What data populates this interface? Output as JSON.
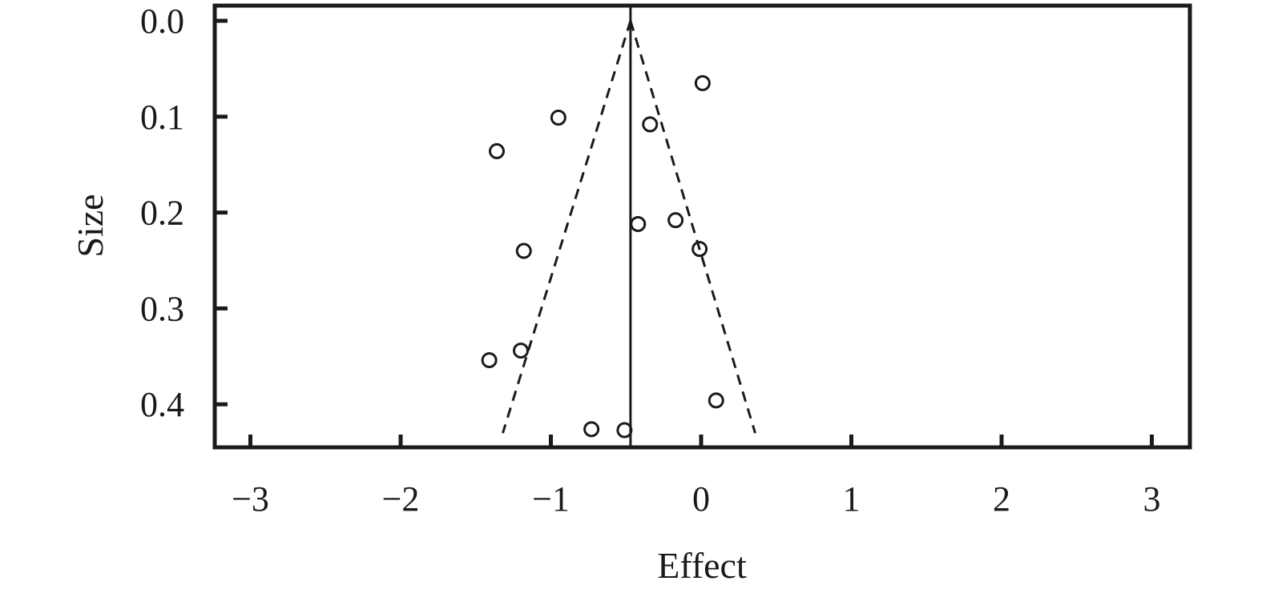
{
  "chart_data": {
    "type": "scatter",
    "title": "",
    "xlabel": "Effect",
    "ylabel": "Size",
    "xlim": [
      -3.25,
      3.25
    ],
    "ylim": [
      0.0,
      0.45
    ],
    "y_axis_inverted": true,
    "x_ticks": [
      -3,
      -2,
      -1,
      0,
      1,
      2,
      3
    ],
    "x_tick_labels": [
      "−3",
      "−2",
      "−1",
      "0",
      "1",
      "2",
      "3"
    ],
    "y_ticks": [
      0.0,
      0.1,
      0.2,
      0.3,
      0.4
    ],
    "y_tick_labels": [
      "0.0",
      "0.1",
      "0.2",
      "0.3",
      "0.4"
    ],
    "grid": false,
    "marker": "open-circle",
    "pooled_effect": -0.47,
    "funnel_lines": [
      {
        "style": "dashed",
        "points": [
          {
            "x": -0.47,
            "y": 0.0
          },
          {
            "x": -1.32,
            "y": 0.43
          }
        ]
      },
      {
        "style": "dashed",
        "points": [
          {
            "x": -0.47,
            "y": 0.0
          },
          {
            "x": 0.36,
            "y": 0.43
          }
        ]
      }
    ],
    "points": [
      {
        "x": 0.01,
        "y": 0.065
      },
      {
        "x": -0.95,
        "y": 0.101
      },
      {
        "x": -0.34,
        "y": 0.108
      },
      {
        "x": -1.36,
        "y": 0.136
      },
      {
        "x": -0.42,
        "y": 0.212
      },
      {
        "x": -0.17,
        "y": 0.208
      },
      {
        "x": -1.18,
        "y": 0.24
      },
      {
        "x": -0.01,
        "y": 0.238
      },
      {
        "x": -1.2,
        "y": 0.344
      },
      {
        "x": -1.41,
        "y": 0.354
      },
      {
        "x": 0.1,
        "y": 0.396
      },
      {
        "x": -0.73,
        "y": 0.426
      },
      {
        "x": -0.51,
        "y": 0.427
      }
    ]
  }
}
